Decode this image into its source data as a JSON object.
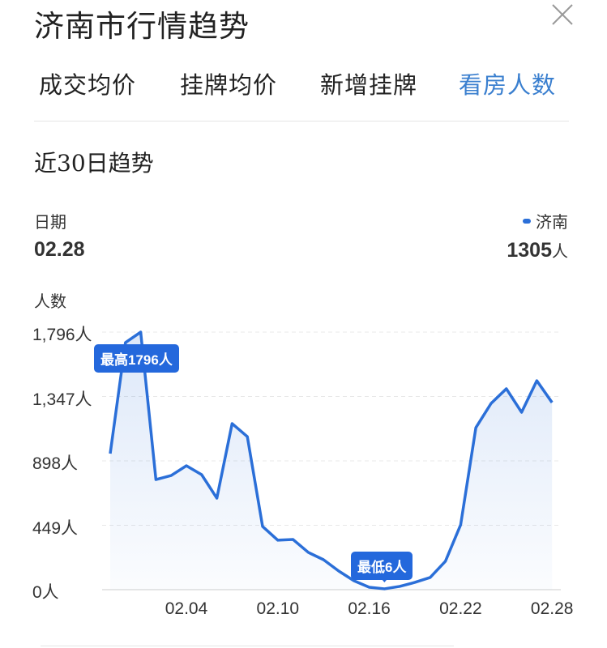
{
  "header": {
    "title": "济南市行情趋势",
    "close_icon": "close-x-icon"
  },
  "tabs": [
    {
      "label": "成交均价",
      "active": false
    },
    {
      "label": "挂牌均价",
      "active": false
    },
    {
      "label": "新增挂牌",
      "active": false
    },
    {
      "label": "看房人数",
      "active": true
    }
  ],
  "section_title": "近30日趋势",
  "summary": {
    "date_label": "日期",
    "date_value": "02.28",
    "series_name": "济南",
    "value": "1305",
    "unit": "人"
  },
  "colors": {
    "accent": "#2b6fd8",
    "tab_active": "#3a7fcf",
    "badge": "#2468dc"
  },
  "chart_data": {
    "type": "area",
    "ylabel": "人数",
    "ylim": [
      0,
      1796
    ],
    "yticks": [
      "0人",
      "449人",
      "898人",
      "1,347人",
      "1,796人"
    ],
    "ytick_values": [
      0,
      449,
      898,
      1347,
      1796
    ],
    "xticks": [
      "02.04",
      "02.10",
      "02.16",
      "02.22",
      "02.28"
    ],
    "grid": true,
    "legend": "top-right",
    "x": [
      "01.30",
      "01.31",
      "02.01",
      "02.02",
      "02.03",
      "02.04",
      "02.05",
      "02.06",
      "02.07",
      "02.08",
      "02.09",
      "02.10",
      "02.11",
      "02.12",
      "02.13",
      "02.14",
      "02.15",
      "02.16",
      "02.17",
      "02.18",
      "02.19",
      "02.20",
      "02.21",
      "02.22",
      "02.23",
      "02.24",
      "02.25",
      "02.26",
      "02.27",
      "02.28"
    ],
    "series": [
      {
        "name": "济南",
        "values": [
          949,
          1723,
          1796,
          768,
          796,
          864,
          802,
          638,
          1158,
          1067,
          441,
          345,
          350,
          260,
          209,
          130,
          62,
          17,
          6,
          23,
          51,
          85,
          198,
          452,
          1130,
          1299,
          1401,
          1237,
          1457,
          1305
        ]
      }
    ],
    "annotations": {
      "max_label": "最高1796人",
      "min_label": "最低6人"
    }
  }
}
